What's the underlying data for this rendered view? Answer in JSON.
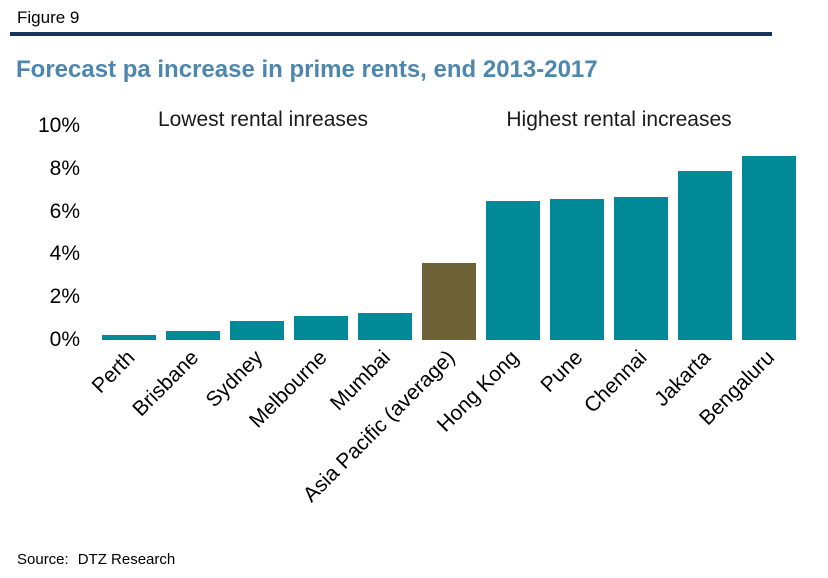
{
  "figure_label": "Figure 9",
  "title": "Forecast pa increase in prime rents, end 2013-2017",
  "annotations": {
    "left": "Lowest rental inreases",
    "right": "Highest rental increases"
  },
  "source": {
    "label": "Source:",
    "text": "DTZ Research"
  },
  "colors": {
    "rule_navy": "#17365D",
    "title_blue": "#4E87AE",
    "bar_teal": "#008996",
    "bar_highlight_brown": "#6E6239",
    "text_black": "#000000"
  },
  "chart_data": {
    "type": "bar",
    "title": "Forecast pa increase in prime rents, end 2013-2017",
    "categories": [
      "Perth",
      "Brisbane",
      "Sydney",
      "Melbourne",
      "Mumbai",
      "Asia Pacific (average)",
      "Hong Kong",
      "Pune",
      "Chennai",
      "Jakarta",
      "Bengaluru"
    ],
    "values": [
      0.25,
      0.4,
      0.9,
      1.1,
      1.25,
      3.6,
      6.5,
      6.6,
      6.7,
      7.9,
      8.6
    ],
    "highlight_index": 5,
    "bar_color": "#008996",
    "highlight_color": "#6E6239",
    "xlabel": "",
    "ylabel": "",
    "ylim": [
      0,
      10
    ],
    "yticks": [
      0,
      2,
      4,
      6,
      8,
      10
    ],
    "ytick_suffix": "%",
    "grid": false,
    "legend": false,
    "annotations": [
      {
        "text": "Lowest rental inreases",
        "over": "left group"
      },
      {
        "text": "Highest rental increases",
        "over": "right group"
      }
    ]
  }
}
